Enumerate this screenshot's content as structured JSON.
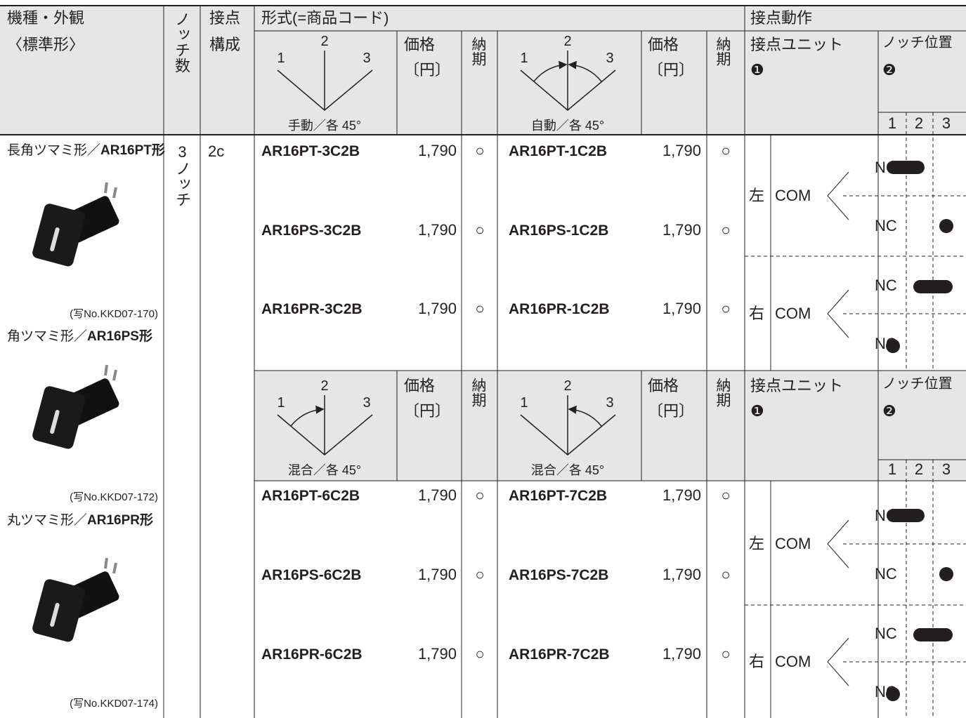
{
  "table": {
    "headers": {
      "model": "機種・外観",
      "model_note": "〈標準形〉",
      "notch_count": "ノッチ数",
      "contact_config": [
        "接点",
        "構成"
      ],
      "type_code": "形式(=商品コード)",
      "contact_action": "接点動作"
    },
    "models": [
      {
        "name": "長角ツマミ形／",
        "code": "AR16PT形",
        "photo_caption": "(写No.KKD07-170)"
      },
      {
        "name": "角ツマミ形／",
        "code": "AR16PS形",
        "photo_caption": "(写No.KKD07-172)"
      },
      {
        "name": "丸ツマミ形／",
        "code": "AR16PR形",
        "photo_caption": "(写No.KKD07-174)"
      }
    ],
    "notch_count": "3ノッチ",
    "contact_config": "2c",
    "sections": [
      {
        "diagrams": [
          {
            "labels": [
              "1",
              "2",
              "3"
            ],
            "caption": "手動／各 45°",
            "price_header": [
              "価格",
              "〔円〕"
            ],
            "delivery_header": "納期"
          },
          {
            "labels": [
              "1",
              "2",
              "3"
            ],
            "caption": "自動／各 45°",
            "price_header": [
              "価格",
              "〔円〕"
            ],
            "delivery_header": "納期"
          }
        ],
        "unit_header": [
          "接点ユニット",
          "❶"
        ],
        "notch_header": [
          "ノッチ位置",
          "❷"
        ],
        "positions": [
          "1",
          "2",
          "3"
        ],
        "rows": [
          {
            "codes": [
              "AR16PT-3C2B",
              "AR16PT-1C2B"
            ],
            "prices": [
              "1,790",
              "1,790"
            ],
            "delivery": [
              "○",
              "○"
            ]
          },
          {
            "codes": [
              "AR16PS-3C2B",
              "AR16PS-1C2B"
            ],
            "prices": [
              "1,790",
              "1,790"
            ],
            "delivery": [
              "○",
              "○"
            ]
          },
          {
            "codes": [
              "AR16PR-3C2B",
              "AR16PR-1C2B"
            ],
            "prices": [
              "1,790",
              "1,790"
            ],
            "delivery": [
              "○",
              "○"
            ]
          }
        ],
        "units": [
          {
            "side": "左",
            "com": "COM",
            "nc": [
              "NC",
              "NC"
            ]
          },
          {
            "side": "右",
            "com": "COM",
            "nc": [
              "NC",
              "NC"
            ]
          }
        ]
      },
      {
        "diagrams": [
          {
            "labels": [
              "1",
              "2",
              "3"
            ],
            "caption": "混合／各 45°",
            "price_header": [
              "価格",
              "〔円〕"
            ],
            "delivery_header": "納期"
          },
          {
            "labels": [
              "1",
              "2",
              "3"
            ],
            "caption": "混合／各 45°",
            "price_header": [
              "価格",
              "〔円〕"
            ],
            "delivery_header": "納期"
          }
        ],
        "unit_header": [
          "接点ユニット",
          "❶"
        ],
        "notch_header": [
          "ノッチ位置",
          "❷"
        ],
        "positions": [
          "1",
          "2",
          "3"
        ],
        "rows": [
          {
            "codes": [
              "AR16PT-6C2B",
              "AR16PT-7C2B"
            ],
            "prices": [
              "1,790",
              "1,790"
            ],
            "delivery": [
              "○",
              "○"
            ]
          },
          {
            "codes": [
              "AR16PS-6C2B",
              "AR16PS-7C2B"
            ],
            "prices": [
              "1,790",
              "1,790"
            ],
            "delivery": [
              "○",
              "○"
            ]
          },
          {
            "codes": [
              "AR16PR-6C2B",
              "AR16PR-7C2B"
            ],
            "prices": [
              "1,790",
              "1,790"
            ],
            "delivery": [
              "○",
              "○"
            ]
          }
        ],
        "units": [
          {
            "side": "左",
            "com": "COM",
            "nc": [
              "NC",
              "NC"
            ]
          },
          {
            "side": "右",
            "com": "COM",
            "nc": [
              "NC",
              "NC"
            ]
          }
        ]
      }
    ]
  }
}
